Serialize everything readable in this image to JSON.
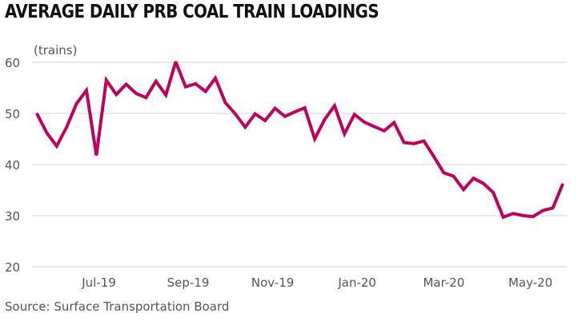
{
  "title": "AVERAGE DAILY PRB COAL TRAIN LOADINGS",
  "source": "Source: Surface Transportation Board",
  "chart_data": {
    "type": "line",
    "title": "AVERAGE DAILY PRB COAL TRAIN LOADINGS",
    "ylabel": "(trains)",
    "xlabel": "",
    "ylim": [
      20,
      60
    ],
    "yticks": [
      "60",
      "50",
      "40",
      "30",
      "20"
    ],
    "xtick_labels": [
      "Jul-19",
      "Sep-19",
      "Nov-19",
      "Jan-20",
      "Mar-20",
      "May-20"
    ],
    "grid": "horizontal",
    "color": "#c0005e",
    "series": [
      {
        "values": [
          50.0,
          46.2,
          43.6,
          47.3,
          51.9,
          54.5,
          41.8,
          56.5,
          53.7,
          55.7,
          53.9,
          53.1,
          56.3,
          53.6,
          60.1,
          55.2,
          55.8,
          54.3,
          56.9,
          52.1,
          49.9,
          47.3,
          49.9,
          48.6,
          51.0,
          49.4,
          50.3,
          51.1,
          45.0,
          48.8,
          51.5,
          46.0,
          49.8,
          48.3,
          47.4,
          46.6,
          48.2,
          44.3,
          44.1,
          44.6,
          41.6,
          38.4,
          37.7,
          35.1,
          37.3,
          36.3,
          34.5,
          29.7,
          30.4,
          30.0,
          29.8,
          31.0,
          31.5,
          36.2
        ]
      }
    ]
  }
}
